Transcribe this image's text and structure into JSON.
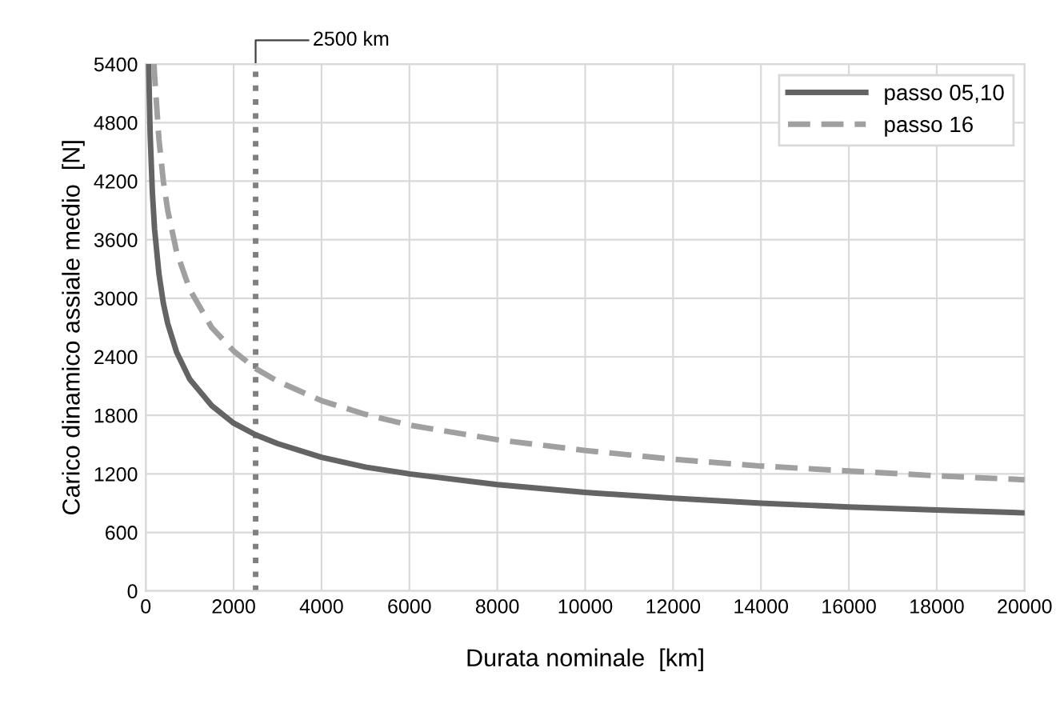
{
  "chart_data": {
    "type": "line",
    "xlabel": "Durata nominale  [km]",
    "ylabel": "Carico dinamico assiale medio  [N]",
    "xlim": [
      0,
      20000
    ],
    "xticks": [
      0,
      2000,
      4000,
      6000,
      8000,
      10000,
      12000,
      14000,
      16000,
      18000,
      20000
    ],
    "ylim": [
      0,
      5400
    ],
    "yticks": [
      0,
      600,
      1200,
      1800,
      2400,
      3000,
      3600,
      4200,
      4800,
      5400
    ],
    "grid": true,
    "legend": "top right",
    "series": [
      {
        "name": "passo 05,10",
        "color": "#646464",
        "line_style": "solid",
        "x": [
          65,
          100,
          150,
          200,
          300,
          400,
          500,
          700,
          1000,
          1500,
          2000,
          2500,
          3000,
          4000,
          5000,
          6000,
          8000,
          10000,
          12000,
          14000,
          16000,
          18000,
          20000
        ],
        "values": [
          5400,
          4680,
          4090,
          3710,
          3250,
          2950,
          2740,
          2450,
          2170,
          1900,
          1720,
          1600,
          1510,
          1370,
          1270,
          1200,
          1090,
          1010,
          950,
          900,
          860,
          830,
          800
        ]
      },
      {
        "name": "passo 16",
        "color": "#a0a0a0",
        "line_style": "dashed",
        "x": [
          188,
          200,
          300,
          400,
          500,
          700,
          1000,
          1500,
          2000,
          2500,
          3000,
          4000,
          5000,
          6000,
          8000,
          10000,
          12000,
          14000,
          16000,
          18000,
          20000
        ],
        "values": [
          5400,
          5290,
          4630,
          4200,
          3900,
          3480,
          3090,
          2700,
          2460,
          2280,
          2150,
          1950,
          1810,
          1700,
          1550,
          1440,
          1350,
          1280,
          1230,
          1180,
          1140
        ]
      }
    ],
    "ref_lines": [
      {
        "axis": "x",
        "value": 2500,
        "label": "2500 km",
        "color": "#808080",
        "line_style": "dotted"
      }
    ]
  }
}
